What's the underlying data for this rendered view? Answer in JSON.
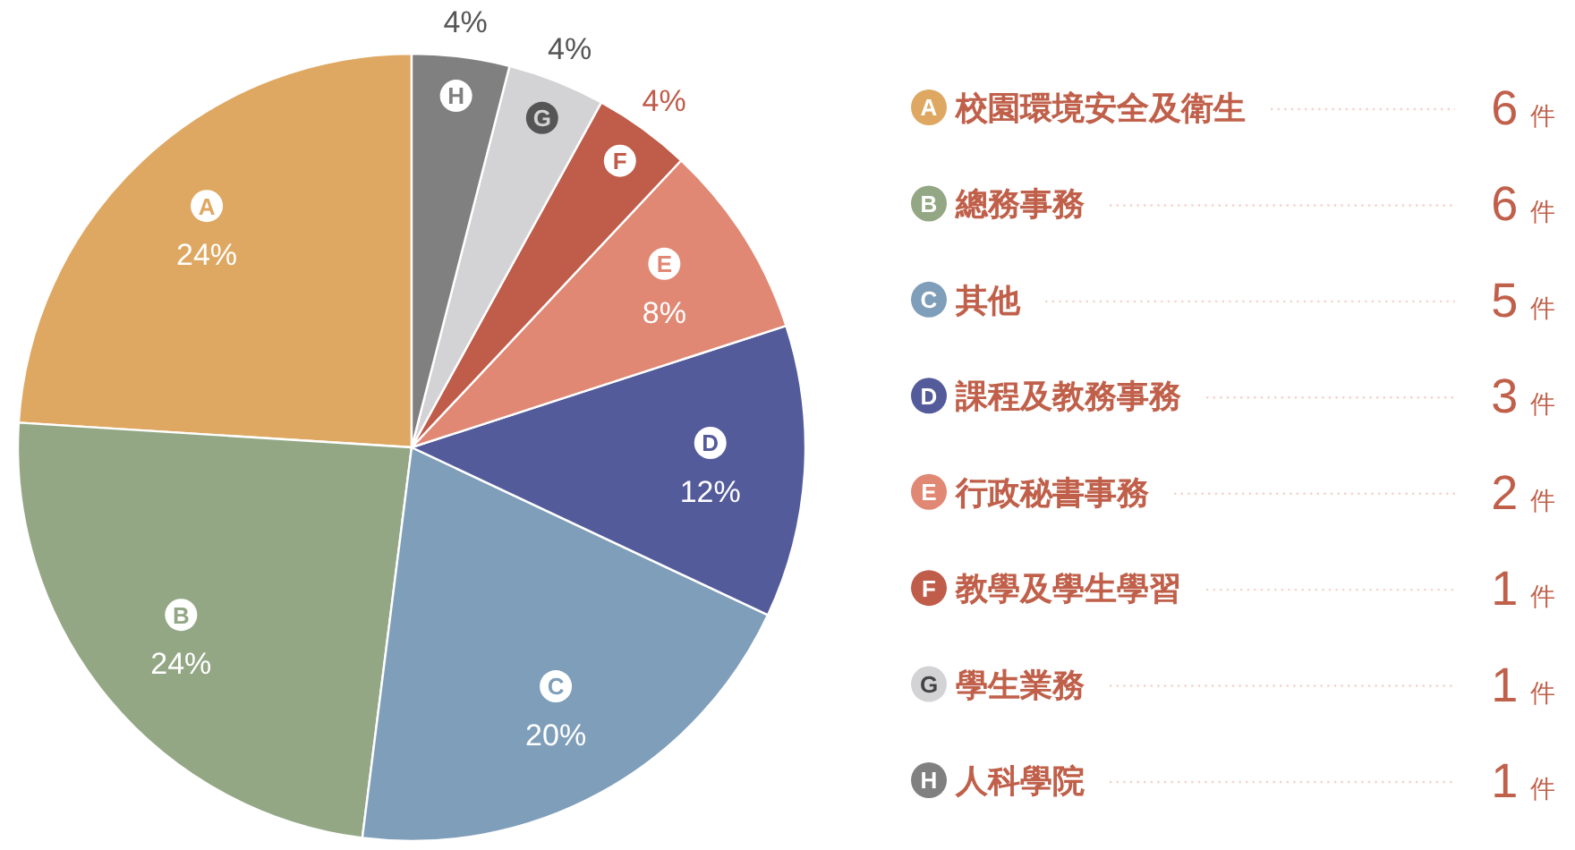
{
  "chart_data": {
    "type": "pie",
    "categories": [
      "校園環境安全及衛生",
      "總務事務",
      "其他",
      "課程及教務事務",
      "行政秘書事務",
      "教學及學生學習",
      "學生業務",
      "人科學院"
    ],
    "values": [
      24,
      24,
      20,
      12,
      8,
      4,
      4,
      4
    ],
    "colors": [
      "#dea862",
      "#93a785",
      "#7f9eba",
      "#535b9a",
      "#e08874",
      "#bf5c4a",
      "#d3d3d5",
      "#808080"
    ],
    "value_labels": [
      "24%",
      "24%",
      "20%",
      "12%",
      "8%",
      "4%",
      "4%",
      "4%"
    ],
    "annotations": [
      "A",
      "B",
      "C",
      "D",
      "E",
      "F",
      "G",
      "H",
      "6 件",
      "6 件",
      "5 件",
      "3 件",
      "2 件",
      "1 件",
      "1 件",
      "1 件"
    ],
    "legend": "right"
  }
}
